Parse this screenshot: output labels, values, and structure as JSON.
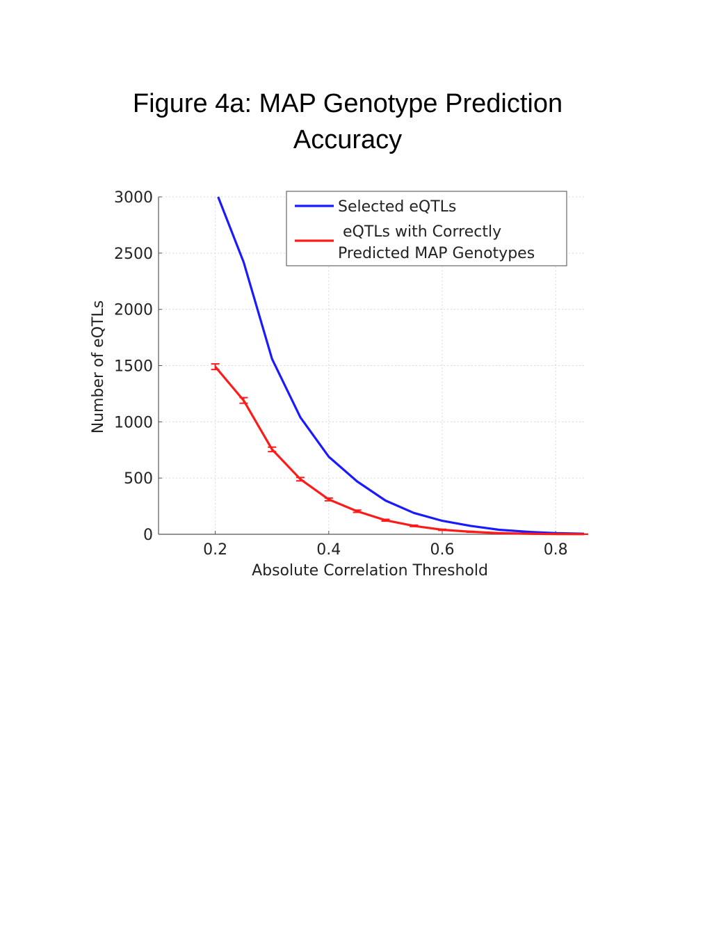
{
  "figure": {
    "title_line_1": "Figure 4a: MAP Genotype Prediction",
    "title_line_2": "Accuracy"
  },
  "chart_data": {
    "type": "line",
    "xlabel": "Absolute Correlation Threshold",
    "ylabel": "Number of eQTLs",
    "xlim": [
      0.1,
      0.85
    ],
    "ylim": [
      0,
      3000
    ],
    "xticks": [
      0.2,
      0.4,
      0.6,
      0.8
    ],
    "xtick_labels": [
      "0.2",
      "0.4",
      "0.6",
      "0.8"
    ],
    "yticks": [
      0,
      500,
      1000,
      1500,
      2000,
      2500,
      3000
    ],
    "ytick_labels": [
      "0",
      "500",
      "1000",
      "1500",
      "2000",
      "2500",
      "3000"
    ],
    "grid": "dotted",
    "legend_position": "top-right",
    "series": [
      {
        "name": "Selected eQTLs",
        "color": "#1a1aff",
        "error_bars": false,
        "x": [
          0.205,
          0.25,
          0.3,
          0.35,
          0.4,
          0.45,
          0.5,
          0.55,
          0.6,
          0.65,
          0.7,
          0.75,
          0.8,
          0.85
        ],
        "y": [
          3000,
          2420,
          1560,
          1040,
          690,
          470,
          300,
          190,
          120,
          75,
          40,
          22,
          10,
          5
        ]
      },
      {
        "name": "eQTLs with Correctly Predicted MAP Genotypes",
        "legend_lines": [
          "eQTLs with Correctly",
          "Predicted MAP Genotypes"
        ],
        "color": "#ff1a1a",
        "error_bars": true,
        "x": [
          0.2,
          0.25,
          0.3,
          0.35,
          0.4,
          0.45,
          0.5,
          0.55,
          0.6,
          0.65,
          0.7,
          0.75,
          0.8,
          0.85
        ],
        "y": [
          1490,
          1190,
          755,
          490,
          310,
          205,
          125,
          75,
          40,
          22,
          10,
          5,
          2,
          1
        ],
        "err": [
          25,
          25,
          20,
          15,
          12,
          10,
          8,
          6,
          5,
          4,
          3,
          2,
          1,
          1
        ]
      }
    ]
  }
}
